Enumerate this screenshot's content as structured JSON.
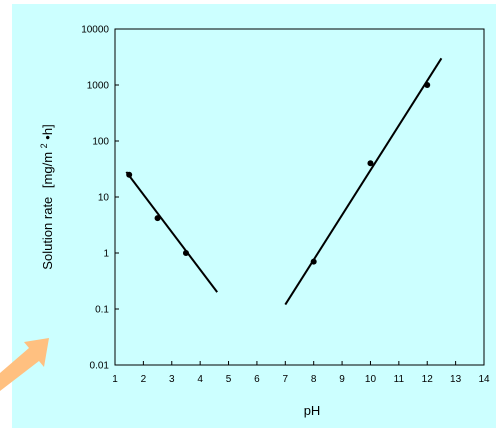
{
  "chart_data": {
    "type": "scatter",
    "title": "",
    "xlabel": "pH",
    "ylabel": "Solution rate",
    "ylabel_unit_parts": [
      "[mg/m",
      "2",
      "•h]"
    ],
    "xlim": [
      1,
      14
    ],
    "ylim": [
      0.01,
      10000
    ],
    "yscale": "log",
    "grid": false,
    "x_ticks": [
      "1",
      "2",
      "3",
      "4",
      "5",
      "6",
      "7",
      "8",
      "9",
      "10",
      "11",
      "12",
      "13",
      "14"
    ],
    "y_ticks": [
      "10000",
      "1000",
      "100",
      "10",
      "1",
      "0.1",
      "0.01"
    ],
    "y_tick_values": [
      10000,
      1000,
      100,
      10,
      1,
      0.1,
      0.01
    ],
    "points": [
      {
        "x": 1.5,
        "y": 25
      },
      {
        "x": 2.5,
        "y": 4.2
      },
      {
        "x": 3.5,
        "y": 1.0
      },
      {
        "x": 8.0,
        "y": 0.7
      },
      {
        "x": 10.0,
        "y": 40
      },
      {
        "x": 12.0,
        "y": 1000
      }
    ],
    "trend_lines": [
      {
        "x": [
          1.4,
          4.6
        ],
        "y": [
          28,
          0.2
        ]
      },
      {
        "x": [
          7.0,
          12.5
        ],
        "y": [
          0.12,
          3000
        ]
      }
    ],
    "colors": {
      "background": "#ccffff",
      "marks": "#000000",
      "arrow": "#ffc080"
    }
  }
}
